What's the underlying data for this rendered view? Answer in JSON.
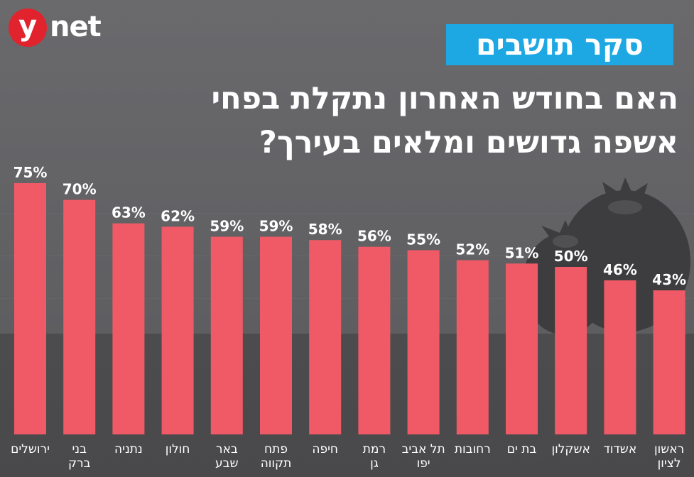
{
  "logo": {
    "mark": "y",
    "text": "net"
  },
  "header": {
    "tag": "סקר תושבים",
    "title_line1": "האם בחודש האחרון נתקלת בפחי",
    "title_line2": "אשפה גדושים ומלאים בעירך?"
  },
  "icons": {
    "background": "garbage-bags-icon"
  },
  "colors": {
    "bar": "#ef5a66",
    "tag_bg": "#1da8e3",
    "logo_red": "#e0232d"
  },
  "chart_data": {
    "type": "bar",
    "title": "האם בחודש האחרון נתקלת בפחי אשפה גדושים ומלאים בעירך?",
    "xlabel": "",
    "ylabel": "",
    "unit": "%",
    "ylim": [
      0,
      100
    ],
    "grid": false,
    "legend": "none",
    "categories": [
      [
        "ירושלים"
      ],
      [
        "בני",
        "ברק"
      ],
      [
        "נתניה"
      ],
      [
        "חולון"
      ],
      [
        "באר",
        "שבע"
      ],
      [
        "פתח",
        "תקווה"
      ],
      [
        "חיפה"
      ],
      [
        "רמת",
        "גן"
      ],
      [
        "תל אביב",
        "יפו"
      ],
      [
        "רחובות"
      ],
      [
        "בת ים"
      ],
      [
        "אשקלון"
      ],
      [
        "אשדוד"
      ],
      [
        "ראשון",
        "לציון"
      ]
    ],
    "values": [
      75,
      70,
      63,
      62,
      59,
      59,
      58,
      56,
      55,
      52,
      51,
      50,
      46,
      43
    ],
    "value_labels": [
      "75%",
      "70%",
      "63%",
      "62%",
      "59%",
      "59%",
      "58%",
      "56%",
      "55%",
      "52%",
      "51%",
      "50%",
      "46%",
      "43%"
    ]
  }
}
